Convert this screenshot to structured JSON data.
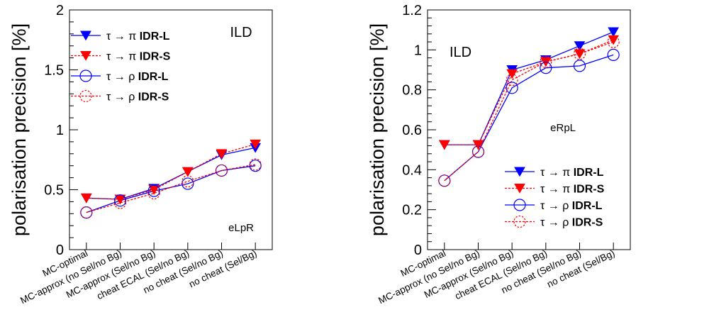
{
  "chart_data": [
    {
      "type": "line",
      "ylabel": "polarisation precision [%]",
      "ylim": [
        0,
        2
      ],
      "yticks": [
        "0",
        "0.5",
        "1",
        "1.5",
        "2"
      ],
      "categories": [
        "MC-optimal",
        "MC-approx (no Sel/no Bg)",
        "MC-approx (Sel/no Bg)",
        "cheat ECAL (Sel/no Bg)",
        "no cheat (Sel/no Bg)",
        "no cheat (Sel/Bg)"
      ],
      "annotations": {
        "experiment": "ILD",
        "polarisation": "eLpR"
      },
      "legend_position": "top-left",
      "series": [
        {
          "name": "τ → π",
          "tag": "IDR-L",
          "color": "#0000ff",
          "marker": "triangle-down",
          "open": false,
          "dashed": false,
          "values": [
            0.43,
            0.42,
            0.51,
            0.65,
            0.79,
            0.85
          ]
        },
        {
          "name": "τ → π",
          "tag": "IDR-S",
          "color": "#ff0000",
          "marker": "triangle-down",
          "open": false,
          "dashed": true,
          "values": [
            0.43,
            0.42,
            0.5,
            0.65,
            0.8,
            0.88
          ]
        },
        {
          "name": "τ → ρ",
          "tag": "IDR-L",
          "color": "#0000ff",
          "marker": "circle",
          "open": true,
          "dashed": false,
          "values": [
            0.31,
            0.41,
            0.49,
            0.55,
            0.66,
            0.7
          ]
        },
        {
          "name": "τ → ρ",
          "tag": "IDR-S",
          "color": "#ff0000",
          "marker": "circle",
          "open": true,
          "dashed": true,
          "values": [
            0.31,
            0.39,
            0.47,
            0.57,
            0.66,
            0.71
          ]
        }
      ]
    },
    {
      "type": "line",
      "ylabel": "polarisation precision [%]",
      "ylim": [
        0,
        1.2
      ],
      "yticks": [
        "0",
        "0.2",
        "0.4",
        "0.6",
        "0.8",
        "1",
        "1.2"
      ],
      "categories": [
        "MC-optimal",
        "MC-approx (no Sel/no Bg)",
        "MC-approx (Sel/no Bg)",
        "cheat ECAL (Sel/no Bg)",
        "no cheat (Sel/no Bg)",
        "no cheat (Sel/Bg)"
      ],
      "annotations": {
        "experiment": "ILD",
        "polarisation": "eRpL"
      },
      "legend_position": "bottom-right",
      "series": [
        {
          "name": "τ → π",
          "tag": "IDR-L",
          "color": "#0000ff",
          "marker": "triangle-down",
          "open": false,
          "dashed": false,
          "values": [
            0.525,
            0.525,
            0.9,
            0.95,
            1.02,
            1.09
          ]
        },
        {
          "name": "τ → π",
          "tag": "IDR-S",
          "color": "#ff0000",
          "marker": "triangle-down",
          "open": false,
          "dashed": true,
          "values": [
            0.525,
            0.525,
            0.88,
            0.94,
            0.98,
            1.05
          ]
        },
        {
          "name": "τ → ρ",
          "tag": "IDR-L",
          "color": "#0000ff",
          "marker": "circle",
          "open": true,
          "dashed": false,
          "values": [
            0.345,
            0.49,
            0.81,
            0.91,
            0.92,
            0.975
          ]
        },
        {
          "name": "τ → ρ",
          "tag": "IDR-S",
          "color": "#ff0000",
          "marker": "circle",
          "open": true,
          "dashed": true,
          "values": [
            0.345,
            0.49,
            0.85,
            0.94,
            0.98,
            1.04
          ]
        }
      ]
    }
  ]
}
